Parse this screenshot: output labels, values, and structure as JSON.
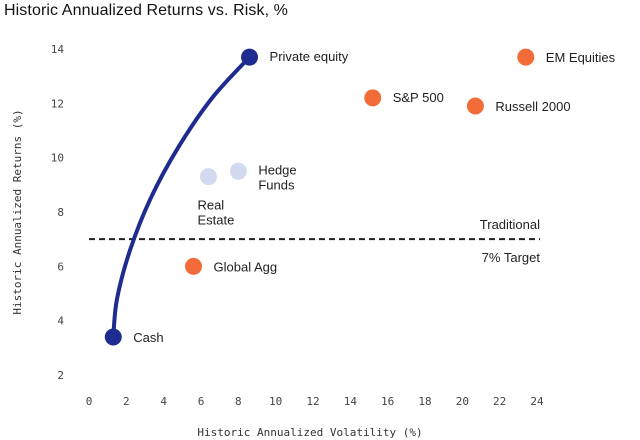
{
  "chart_data": {
    "type": "scatter",
    "title": "Historic Annualized Returns vs. Risk, %",
    "xlabel": "Historic Annualized Volatility (%)",
    "ylabel": "Historic Annualized Returns (%)",
    "xlim": [
      0,
      24
    ],
    "ylim": [
      2,
      14
    ],
    "x_ticks": [
      0,
      2,
      4,
      6,
      8,
      10,
      12,
      14,
      16,
      18,
      20,
      22,
      24
    ],
    "y_ticks": [
      2,
      4,
      6,
      8,
      10,
      12,
      14
    ],
    "grid": false,
    "colors": {
      "traditional": "#f26b38",
      "private": "#1e2b8f",
      "alternative": "#d3d9f1",
      "reference_line": "#222222"
    },
    "points": [
      {
        "label": "Cash",
        "x": 1.3,
        "y": 3.4,
        "group": "private"
      },
      {
        "label": "Private equity",
        "x": 8.6,
        "y": 13.7,
        "group": "private"
      },
      {
        "label": "Real Estate",
        "x": 6.4,
        "y": 9.3,
        "group": "alternative"
      },
      {
        "label": "Hedge Funds",
        "x": 8.0,
        "y": 9.5,
        "group": "alternative"
      },
      {
        "label": "Global Agg",
        "x": 5.6,
        "y": 6.0,
        "group": "traditional"
      },
      {
        "label": "S&P 500",
        "x": 15.2,
        "y": 12.2,
        "group": "traditional"
      },
      {
        "label": "Russell 2000",
        "x": 20.7,
        "y": 11.9,
        "group": "traditional"
      },
      {
        "label": "EM Equities",
        "x": 23.4,
        "y": 13.7,
        "group": "traditional"
      }
    ],
    "curve": {
      "from": "Cash",
      "to": "Private equity",
      "points": [
        [
          1.3,
          3.4
        ],
        [
          1.5,
          4.8
        ],
        [
          2.2,
          6.6
        ],
        [
          3.3,
          8.5
        ],
        [
          4.8,
          10.4
        ],
        [
          6.6,
          12.2
        ],
        [
          8.6,
          13.7
        ]
      ]
    },
    "reference_line": {
      "y": 7,
      "label_top": "Traditional",
      "label_bottom": "7% Target"
    }
  }
}
